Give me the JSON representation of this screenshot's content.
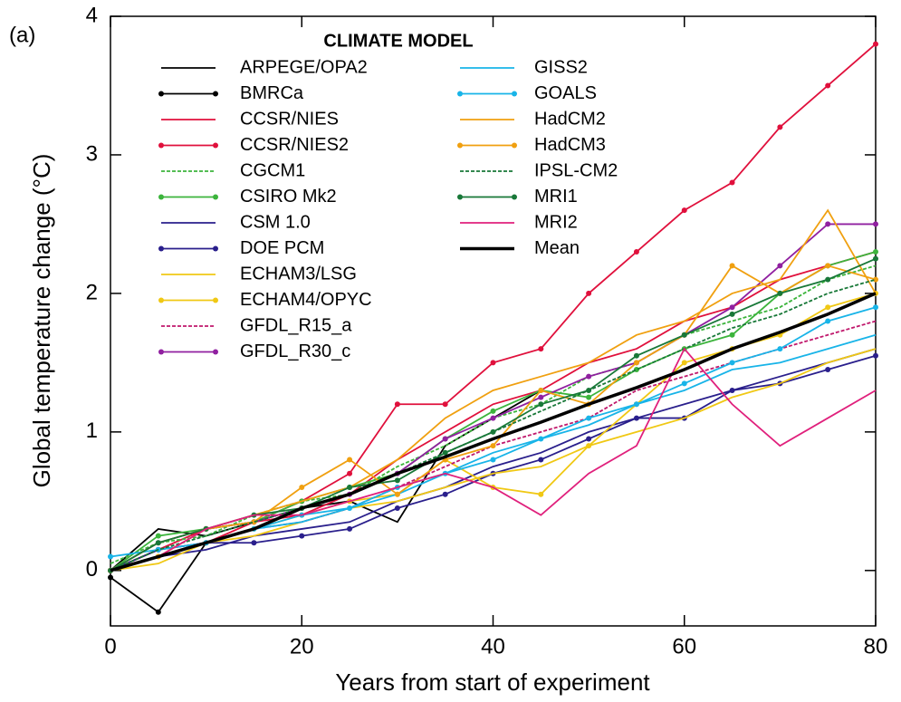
{
  "chart_data": {
    "type": "line",
    "panel_label": "(a)",
    "legend_title": "CLIMATE MODEL",
    "xlabel": "Years from start of experiment",
    "ylabel": "Global temperature change (°C)",
    "x": [
      0,
      5,
      10,
      15,
      20,
      25,
      30,
      35,
      40,
      45,
      50,
      55,
      60,
      65,
      70,
      75,
      80
    ],
    "xlim": [
      0,
      80
    ],
    "xticks": [
      0,
      20,
      40,
      60,
      80
    ],
    "ylim": [
      -0.4,
      4
    ],
    "yticks": [
      0,
      1,
      2,
      3,
      4
    ],
    "series": [
      {
        "name": "ARPEGE/OPA2",
        "color": "#000000",
        "style": "line",
        "values": [
          0,
          0.3,
          0.25,
          0.35,
          0.45,
          0.5,
          0.35,
          0.9,
          1.1,
          1.3,
          null,
          null,
          null,
          null,
          null,
          null,
          null
        ]
      },
      {
        "name": "BMRCa",
        "color": "#000000",
        "style": "dots",
        "values": [
          -0.05,
          -0.3,
          0.2,
          null,
          null,
          null,
          null,
          null,
          null,
          null,
          null,
          null,
          null,
          null,
          null,
          null,
          null
        ]
      },
      {
        "name": "CCSR/NIES",
        "color": "#e0103c",
        "style": "line",
        "values": [
          0,
          0.15,
          0.2,
          0.35,
          0.4,
          0.55,
          0.8,
          1.0,
          1.2,
          1.3,
          1.5,
          1.6,
          1.8,
          1.9,
          2.1,
          2.2,
          2.3
        ]
      },
      {
        "name": "CCSR/NIES2",
        "color": "#e0103c",
        "style": "dots",
        "values": [
          0,
          0.15,
          0.3,
          0.35,
          0.5,
          0.7,
          1.2,
          1.2,
          1.5,
          1.6,
          2.0,
          2.3,
          2.6,
          2.8,
          3.2,
          3.5,
          3.8
        ]
      },
      {
        "name": "CGCM1",
        "color": "#3cb43c",
        "style": "dashed",
        "values": [
          0.05,
          0.2,
          0.25,
          0.4,
          0.5,
          0.55,
          0.75,
          0.9,
          1.1,
          1.2,
          1.4,
          1.5,
          1.7,
          1.8,
          1.9,
          2.1,
          2.2
        ]
      },
      {
        "name": "CSIRO Mk2",
        "color": "#3cb43c",
        "style": "dots",
        "values": [
          0,
          0.25,
          0.3,
          0.35,
          0.5,
          0.6,
          0.7,
          0.95,
          1.15,
          1.3,
          1.25,
          1.45,
          1.6,
          1.7,
          2.0,
          2.2,
          2.3
        ]
      },
      {
        "name": "CSM 1.0",
        "color": "#2a1f8c",
        "style": "line",
        "values": [
          0,
          0.1,
          0.15,
          0.25,
          0.3,
          0.35,
          0.5,
          0.6,
          0.75,
          0.85,
          1.0,
          1.1,
          1.2,
          1.3,
          1.4,
          1.5,
          1.6
        ]
      },
      {
        "name": "DOE PCM",
        "color": "#2a1f8c",
        "style": "dots",
        "values": [
          0,
          0.15,
          0.2,
          0.2,
          0.25,
          0.3,
          0.45,
          0.55,
          0.7,
          0.8,
          0.95,
          1.1,
          1.1,
          1.3,
          1.35,
          1.45,
          1.55
        ]
      },
      {
        "name": "ECHAM3/LSG",
        "color": "#f0c814",
        "style": "line",
        "values": [
          0,
          0.05,
          0.2,
          0.25,
          0.35,
          0.45,
          0.5,
          0.6,
          0.7,
          0.75,
          0.9,
          1.0,
          1.1,
          1.25,
          1.35,
          1.5,
          1.6
        ]
      },
      {
        "name": "ECHAM4/OPYC",
        "color": "#f0c814",
        "style": "dots",
        "values": [
          0,
          0.1,
          0.2,
          0.3,
          0.4,
          0.5,
          0.55,
          0.8,
          0.6,
          0.55,
          0.9,
          1.2,
          1.5,
          1.6,
          1.7,
          1.9,
          2.0
        ]
      },
      {
        "name": "GFDL_R15_a",
        "color": "#c0186c",
        "style": "dashed",
        "values": [
          0,
          0.1,
          0.2,
          0.3,
          0.35,
          0.45,
          0.6,
          0.75,
          0.9,
          1.0,
          1.1,
          1.3,
          1.4,
          1.5,
          1.6,
          1.7,
          1.8
        ]
      },
      {
        "name": "GFDL_R30_c",
        "color": "#9020a0",
        "style": "dots",
        "values": [
          0,
          0.2,
          0.3,
          0.35,
          0.45,
          0.55,
          0.7,
          0.95,
          1.1,
          1.25,
          1.4,
          1.5,
          1.7,
          1.9,
          2.2,
          2.5,
          2.5
        ]
      },
      {
        "name": "GISS2",
        "color": "#18b4e8",
        "style": "line",
        "values": [
          0,
          0.1,
          0.2,
          0.3,
          0.35,
          0.45,
          0.55,
          0.7,
          0.85,
          0.95,
          1.05,
          1.2,
          1.3,
          1.45,
          1.5,
          1.6,
          1.7
        ]
      },
      {
        "name": "GOALS",
        "color": "#18b4e8",
        "style": "dots",
        "values": [
          0.1,
          0.15,
          0.2,
          0.3,
          0.4,
          0.45,
          0.6,
          0.7,
          0.8,
          0.95,
          1.1,
          1.2,
          1.35,
          1.5,
          1.6,
          1.8,
          1.9
        ]
      },
      {
        "name": "HadCM2",
        "color": "#f0a010",
        "style": "line",
        "values": [
          0,
          0.2,
          0.3,
          0.4,
          0.5,
          0.6,
          0.8,
          1.1,
          1.3,
          1.4,
          1.5,
          1.7,
          1.8,
          2.0,
          2.1,
          2.6,
          2.0
        ]
      },
      {
        "name": "HadCM3",
        "color": "#f0a010",
        "style": "dots",
        "values": [
          0,
          0.1,
          0.3,
          0.35,
          0.6,
          0.8,
          0.55,
          0.8,
          0.9,
          1.3,
          1.2,
          1.5,
          1.7,
          2.2,
          2.0,
          2.2,
          2.1
        ]
      },
      {
        "name": "IPSL-CM2",
        "color": "#187838",
        "style": "dashed",
        "values": [
          0,
          0.15,
          0.25,
          0.35,
          0.45,
          0.55,
          0.7,
          0.85,
          1.0,
          1.15,
          1.3,
          1.45,
          1.6,
          1.75,
          1.85,
          2.0,
          2.1
        ]
      },
      {
        "name": "MRI1",
        "color": "#187838",
        "style": "dots",
        "values": [
          0,
          0.2,
          0.3,
          0.4,
          0.45,
          0.6,
          0.65,
          0.85,
          1.0,
          1.2,
          1.3,
          1.55,
          1.7,
          1.85,
          2.0,
          2.1,
          2.25
        ]
      },
      {
        "name": "MRI2",
        "color": "#e0207c",
        "style": "line",
        "values": [
          0,
          0.1,
          0.3,
          0.4,
          0.4,
          0.5,
          0.6,
          0.7,
          0.6,
          0.4,
          0.7,
          0.9,
          1.6,
          1.2,
          0.9,
          1.1,
          1.3
        ]
      },
      {
        "name": "Mean",
        "color": "#000000",
        "style": "thick",
        "values": [
          0,
          0.1,
          0.2,
          0.3,
          0.45,
          0.55,
          0.7,
          0.82,
          0.95,
          1.07,
          1.2,
          1.32,
          1.45,
          1.6,
          1.72,
          1.85,
          2.0
        ]
      }
    ]
  }
}
